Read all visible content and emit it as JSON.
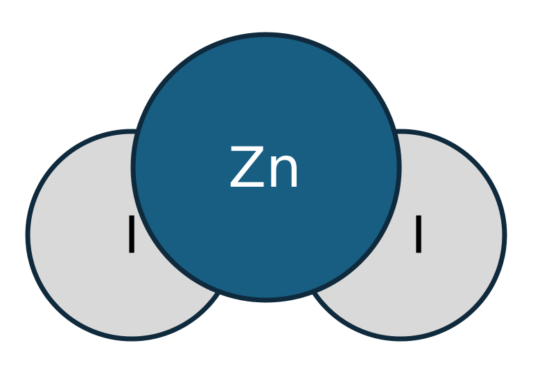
{
  "diagram": {
    "atoms": [
      {
        "id": "iodine-left",
        "symbol": "I",
        "fill": "#d9d9d9",
        "stroke": "#0f2a3d",
        "text_color": "#000000"
      },
      {
        "id": "iodine-right",
        "symbol": "I",
        "fill": "#d9d9d9",
        "stroke": "#0f2a3d",
        "text_color": "#000000"
      },
      {
        "id": "zinc",
        "symbol": "Zn",
        "fill": "#175e82",
        "stroke": "#0f2a3d",
        "text_color": "#ffffff"
      }
    ]
  }
}
